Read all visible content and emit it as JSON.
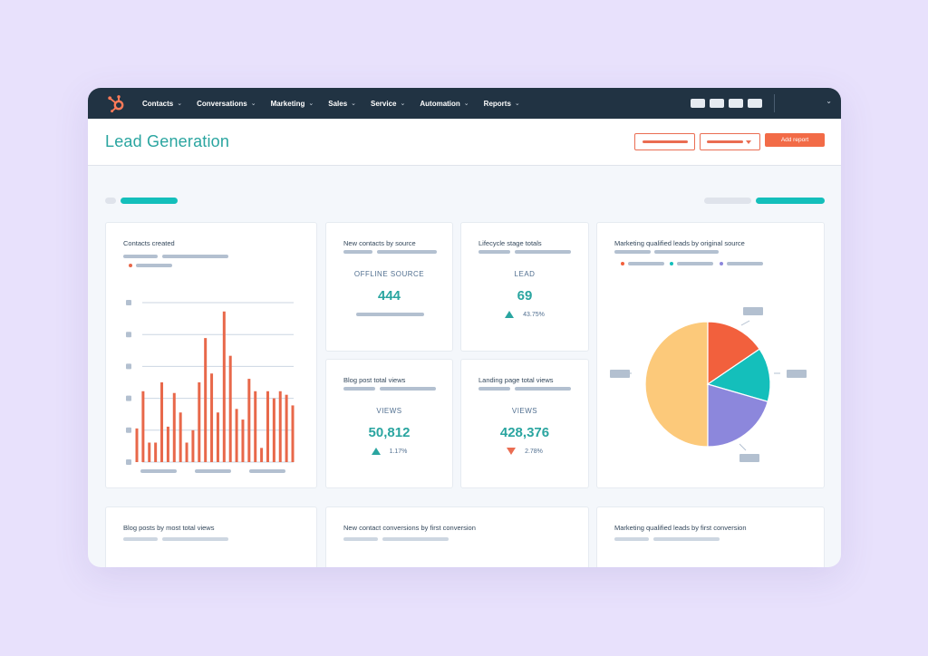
{
  "app": {
    "logo_icon": "hubspot-sprocket-icon",
    "brand_color": "#ff7a59",
    "accent_color": "#2aa5a0"
  },
  "nav": {
    "items": [
      {
        "label": "Contacts"
      },
      {
        "label": "Conversations"
      },
      {
        "label": "Marketing"
      },
      {
        "label": "Sales"
      },
      {
        "label": "Service"
      },
      {
        "label": "Automation"
      },
      {
        "label": "Reports"
      }
    ],
    "chevron_icon": "chevron-down-icon"
  },
  "header": {
    "title": "Lead Generation",
    "add_report_label": "Add report"
  },
  "cards": {
    "contacts_created": {
      "title": "Contacts created",
      "chart_data": {
        "type": "bar",
        "color": "#e8684a",
        "values": [
          38,
          80,
          22,
          22,
          90,
          40,
          78,
          56,
          22,
          36,
          90,
          140,
          100,
          56,
          170,
          120,
          60,
          48,
          94,
          80,
          16,
          80,
          72,
          80,
          76,
          64
        ]
      }
    },
    "new_contacts_by_source": {
      "title": "New contacts by source",
      "label": "OFFLINE SOURCE",
      "value": "444"
    },
    "lifecycle_stage_totals": {
      "title": "Lifecycle stage totals",
      "label": "LEAD",
      "value": "69",
      "delta": "43.75%",
      "delta_direction": "up"
    },
    "mql_by_original_source": {
      "title": "Marketing qualified leads by original source",
      "legend_colors": [
        "#f2603d",
        "#14bfbb",
        "#8c87dc"
      ],
      "chart_data": {
        "type": "pie",
        "values": [
          50,
          15.5,
          14,
          20.5
        ],
        "colors": [
          "#fcc97a",
          "#f2603d",
          "#14bfbb",
          "#8c87dc"
        ]
      }
    },
    "blog_post_total_views": {
      "title": "Blog post total views",
      "label": "VIEWS",
      "value": "50,812",
      "delta": "1.17%",
      "delta_direction": "up"
    },
    "landing_page_total_views": {
      "title": "Landing page total views",
      "label": "VIEWS",
      "value": "428,376",
      "delta": "2.78%",
      "delta_direction": "down"
    },
    "blog_posts_by_views": {
      "title": "Blog posts by most total views"
    },
    "new_contact_conversions": {
      "title": "New contact conversions by first conversion"
    },
    "mql_by_first_conversion": {
      "title": "Marketing qualified leads by first conversion"
    }
  }
}
